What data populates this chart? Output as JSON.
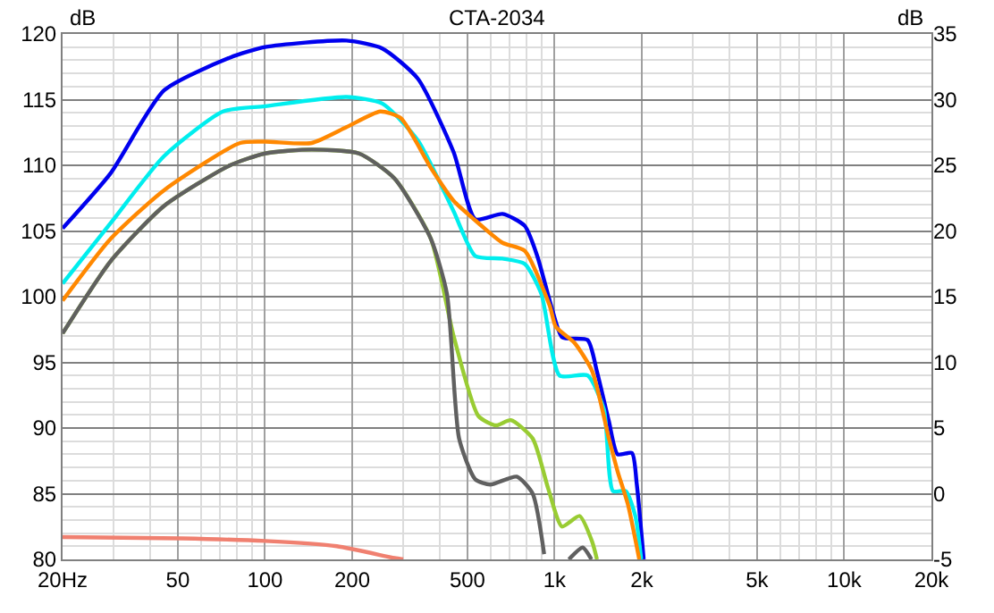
{
  "chart_data": {
    "type": "line",
    "title": "CTA-2034",
    "ylabel": "dB",
    "y2label": "dB",
    "log": "x",
    "grid": true,
    "marker": "none",
    "line_style": "solid",
    "xlim": [
      20,
      20000
    ],
    "xticks": [
      {
        "value": 20,
        "label": "20Hz"
      },
      50,
      100,
      200,
      500,
      {
        "value": 1000,
        "label": "1k"
      },
      {
        "value": 2000,
        "label": "2k"
      },
      {
        "value": 5000,
        "label": "5k"
      },
      {
        "value": 10000,
        "label": "10k"
      },
      {
        "value": 20000,
        "label": "20k"
      }
    ],
    "ylim": [
      80,
      120
    ],
    "yticks": [
      80,
      85,
      90,
      95,
      100,
      105,
      110,
      115,
      120
    ],
    "y2lim": [
      -5,
      35
    ],
    "y2ticks": [
      -5,
      0,
      5,
      10,
      15,
      20,
      25,
      30,
      35
    ],
    "series": [
      {
        "color": "#0000ee",
        "x": [
          20,
          29.3,
          44.8,
          75.7,
          100,
          191,
          254,
          337,
          448,
          532,
          661,
          788,
          871,
          973,
          1063,
          1300,
          1400,
          1540,
          1650,
          1850,
          1920,
          2030
        ],
        "values": [
          105.2,
          109.4,
          115.7,
          118.2,
          119,
          119.5,
          118.9,
          116.6,
          111,
          105.9,
          106.3,
          105.4,
          103.1,
          99.3,
          96.9,
          96.7,
          94.3,
          90.5,
          88,
          88.1,
          85.8,
          80
        ]
      },
      {
        "color": "#00eeee",
        "x": [
          20,
          29.3,
          44.8,
          71.6,
          100,
          191,
          254,
          337,
          448,
          532,
          661,
          788,
          900,
          1040,
          1300,
          1480,
          1590,
          1760,
          1900,
          1990
        ],
        "values": [
          101,
          105.6,
          110.7,
          114.1,
          114.5,
          115.2,
          114.7,
          111.9,
          106.5,
          103.1,
          102.9,
          102.5,
          100.2,
          94,
          94,
          91.4,
          85.2,
          85.2,
          83.3,
          80
        ]
      },
      {
        "color": "#ff8800",
        "x": [
          20,
          29.3,
          44.8,
          82,
          100,
          145,
          191,
          250,
          294,
          374,
          448,
          520,
          661,
          788,
          962,
          1010,
          1170,
          1350,
          1540,
          1650,
          1790,
          1960
        ],
        "values": [
          99.7,
          104.4,
          108.1,
          111.7,
          111.8,
          111.7,
          112.9,
          114.1,
          113.6,
          109.8,
          107.3,
          106,
          104.1,
          103.5,
          99.3,
          97.7,
          96.5,
          94.3,
          89.2,
          86.7,
          84.2,
          80
        ]
      },
      {
        "color": "#99cc33",
        "x": [
          20,
          29.3,
          44.8,
          75.7,
          100,
          145,
          211,
          280,
          374,
          448,
          546,
          628,
          706,
          840,
          950,
          1060,
          1220,
          1350,
          1400
        ],
        "values": [
          97.2,
          102.7,
          106.9,
          110,
          110.9,
          111.2,
          110.9,
          109,
          104.4,
          97,
          90.9,
          90.2,
          90.6,
          89.2,
          85.4,
          82.5,
          83.3,
          81.3,
          80
        ]
      },
      {
        "color": "#606060",
        "x": [
          20,
          29.3,
          44.8,
          75.7,
          100,
          145,
          211,
          280,
          374,
          425,
          468,
          532,
          600,
          740,
          840,
          920,
          940,
          1120,
          1250,
          1340
        ],
        "values": [
          97.2,
          102.7,
          106.9,
          110,
          110.9,
          111.2,
          110.9,
          109,
          104.4,
          100.2,
          89.2,
          86.1,
          85.7,
          86.3,
          85,
          80.4,
          null,
          80,
          80.9,
          80
        ]
      },
      {
        "color": "#f08070",
        "x": [
          20,
          51.6,
          100,
          177,
          280,
          300
        ],
        "values": [
          81.7,
          81.6,
          81.4,
          81,
          80.1,
          80
        ]
      }
    ]
  }
}
